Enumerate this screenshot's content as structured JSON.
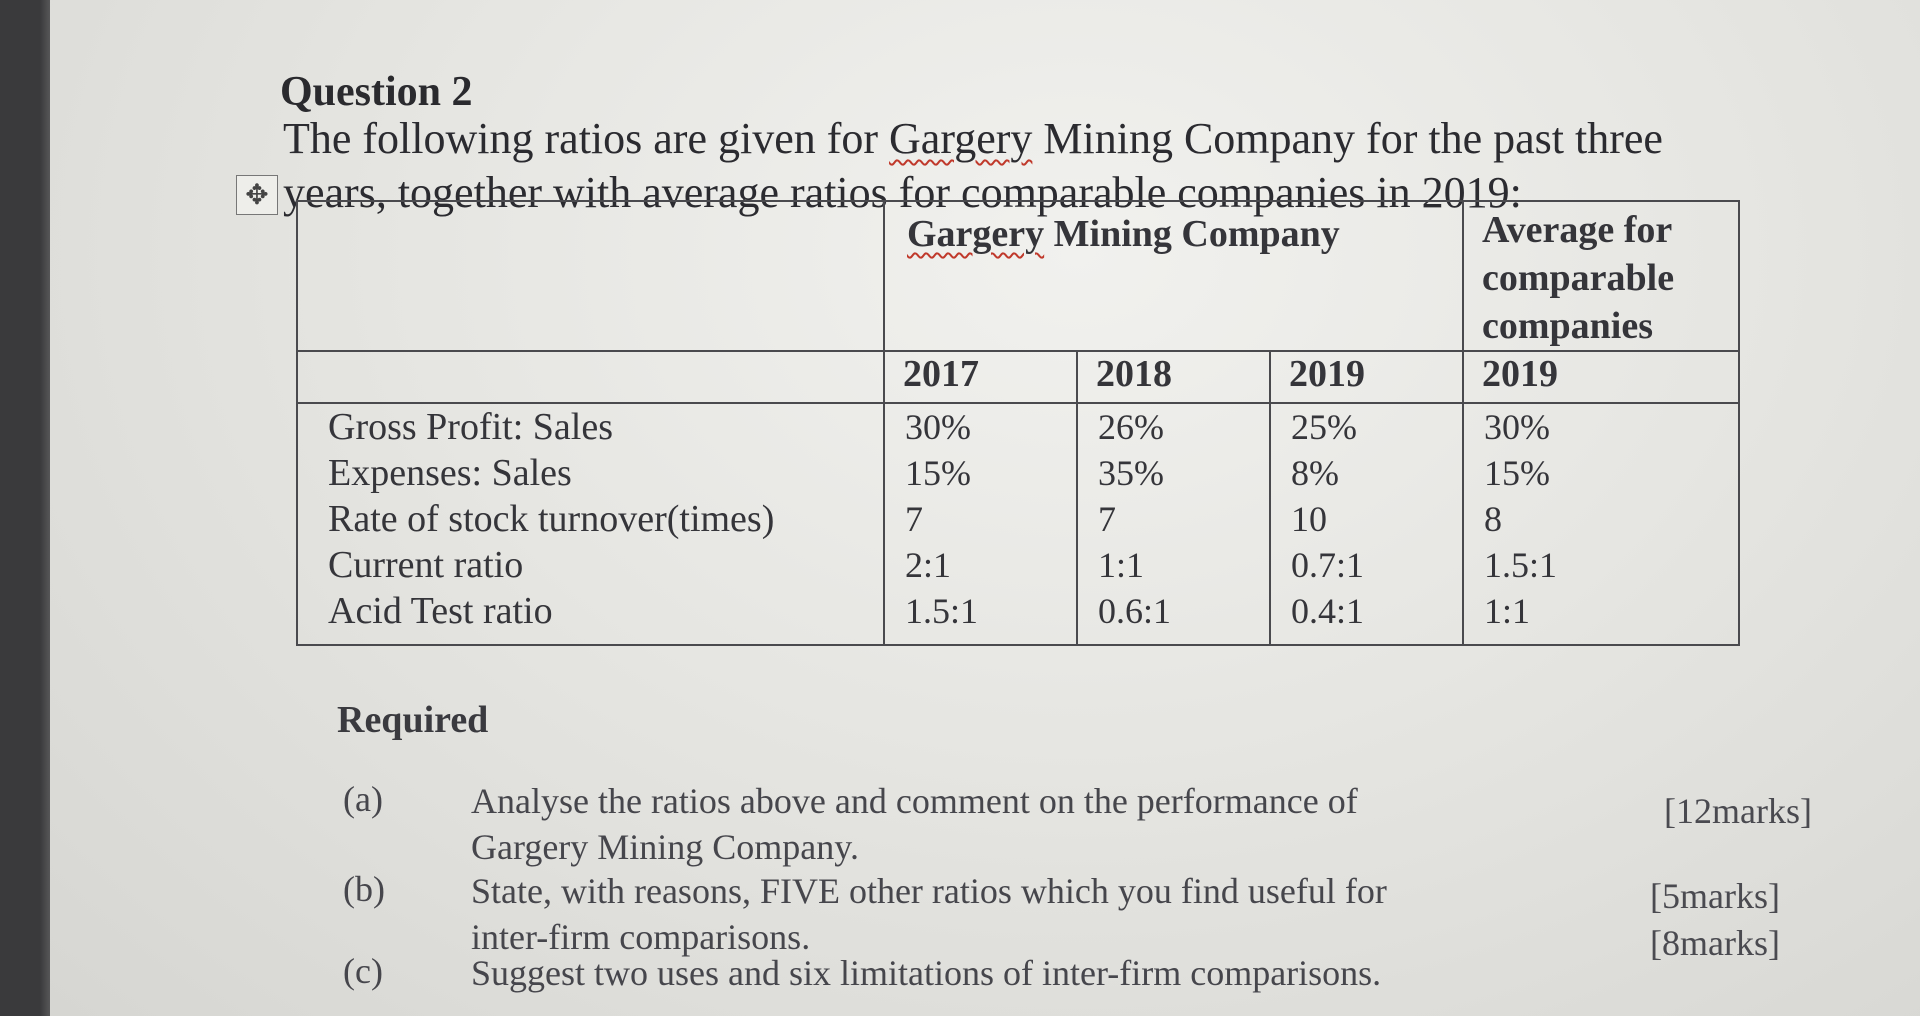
{
  "heading": "Question 2",
  "intro": {
    "before_company": "The following ratios are given for ",
    "company": "Gargery",
    "after_company": " Mining Company for the past three years, together with average ratios for comparable companies in 2019:"
  },
  "table": {
    "company_header": {
      "prefix": "Gargery",
      "rest": " Mining Company"
    },
    "average_header": "Average for comparable companies",
    "years": [
      "2017",
      "2018",
      "2019",
      "2019"
    ],
    "rows": [
      {
        "label": "Gross Profit: Sales",
        "y2017": "30%",
        "y2018": "26%",
        "y2019": "25%",
        "avg2019": "30%"
      },
      {
        "label": "Expenses: Sales",
        "y2017": "15%",
        "y2018": "35%",
        "y2019": "8%",
        "avg2019": "15%"
      },
      {
        "label": "Rate of stock turnover(times)",
        "y2017": "7",
        "y2018": "7",
        "y2019": "10",
        "avg2019": "8"
      },
      {
        "label": "Current ratio",
        "y2017": "2:1",
        "y2018": "1:1",
        "y2019": "0.7:1",
        "avg2019": "1.5:1"
      },
      {
        "label": "Acid Test ratio",
        "y2017": "1.5:1",
        "y2018": "0.6:1",
        "y2019": "0.4:1",
        "avg2019": "1:1"
      }
    ]
  },
  "required": {
    "title": "Required",
    "parts": [
      {
        "label": "(a)",
        "text": "Analyse the ratios above and comment on the performance of Gargery Mining Company.",
        "marks": "[12marks]"
      },
      {
        "label": "(b)",
        "text": "State, with reasons, FIVE other ratios which you find useful for inter-firm comparisons.",
        "marks": "[5marks]"
      },
      {
        "label": "(c)",
        "text": "Suggest two uses and six limitations of inter-firm comparisons.",
        "marks": "[8marks]"
      }
    ]
  },
  "icons": {
    "table_move_handle": "move-arrows-icon"
  },
  "colors": {
    "spellcheck_underline": "#c0392b",
    "text": "#2e2e33",
    "table_border": "#4a4a4e"
  }
}
